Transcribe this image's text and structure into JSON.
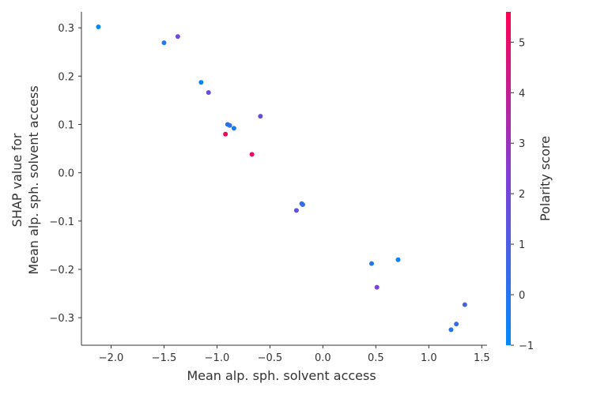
{
  "chart_data": {
    "type": "scatter",
    "xlabel": "Mean alp. sph. solvent access",
    "ylabel_line1": "SHAP value for",
    "ylabel_line2": "Mean alp. sph. solvent access",
    "colorbar_label": "Polarity score",
    "xlim": [
      -2.28,
      1.55
    ],
    "ylim": [
      -0.357,
      0.333
    ],
    "xticks": [
      -2.0,
      -1.5,
      -1.0,
      -0.5,
      0.0,
      0.5,
      1.0,
      1.5
    ],
    "xtick_labels": [
      "−2.0",
      "−1.5",
      "−1.0",
      "−0.5",
      "0.0",
      "0.5",
      "1.0",
      "1.5"
    ],
    "yticks": [
      0.3,
      0.2,
      0.1,
      0.0,
      -0.1,
      -0.2,
      -0.3
    ],
    "ytick_labels": [
      "0.3",
      "0.2",
      "0.1",
      "0.0",
      "−0.1",
      "−0.2",
      "−0.3"
    ],
    "colorbar": {
      "min": -1,
      "max": 5.6,
      "ticks": [
        5,
        4,
        3,
        2,
        1,
        0,
        -1
      ],
      "tick_labels": [
        "5",
        "4",
        "3",
        "2",
        "1",
        "0",
        "−1"
      ],
      "color_low": "#008afb",
      "color_mid": "#7e40d6",
      "color_high": "#ff0052"
    },
    "grid": false,
    "points": [
      {
        "x": -2.12,
        "y": 0.302,
        "c": -0.9
      },
      {
        "x": -1.5,
        "y": 0.269,
        "c": -0.2
      },
      {
        "x": -1.37,
        "y": 0.282,
        "c": 1.9
      },
      {
        "x": -1.15,
        "y": 0.187,
        "c": -0.6
      },
      {
        "x": -1.08,
        "y": 0.166,
        "c": 1.8
      },
      {
        "x": -0.9,
        "y": 0.1,
        "c": 0.1
      },
      {
        "x": -0.88,
        "y": 0.098,
        "c": 0.2
      },
      {
        "x": -0.84,
        "y": 0.092,
        "c": -0.3
      },
      {
        "x": -0.92,
        "y": 0.08,
        "c": 5.4
      },
      {
        "x": -0.67,
        "y": 0.038,
        "c": 5.1
      },
      {
        "x": -0.59,
        "y": 0.117,
        "c": 1.7
      },
      {
        "x": -0.2,
        "y": -0.064,
        "c": -0.1
      },
      {
        "x": -0.19,
        "y": -0.066,
        "c": 0.3
      },
      {
        "x": -0.25,
        "y": -0.078,
        "c": 1.6
      },
      {
        "x": 0.46,
        "y": -0.188,
        "c": -0.3
      },
      {
        "x": 0.71,
        "y": -0.18,
        "c": -0.7
      },
      {
        "x": 0.51,
        "y": -0.237,
        "c": 2.2
      },
      {
        "x": 1.34,
        "y": -0.273,
        "c": 0.8
      },
      {
        "x": 1.26,
        "y": -0.313,
        "c": 0.3
      },
      {
        "x": 1.21,
        "y": -0.325,
        "c": 0.0
      }
    ]
  }
}
